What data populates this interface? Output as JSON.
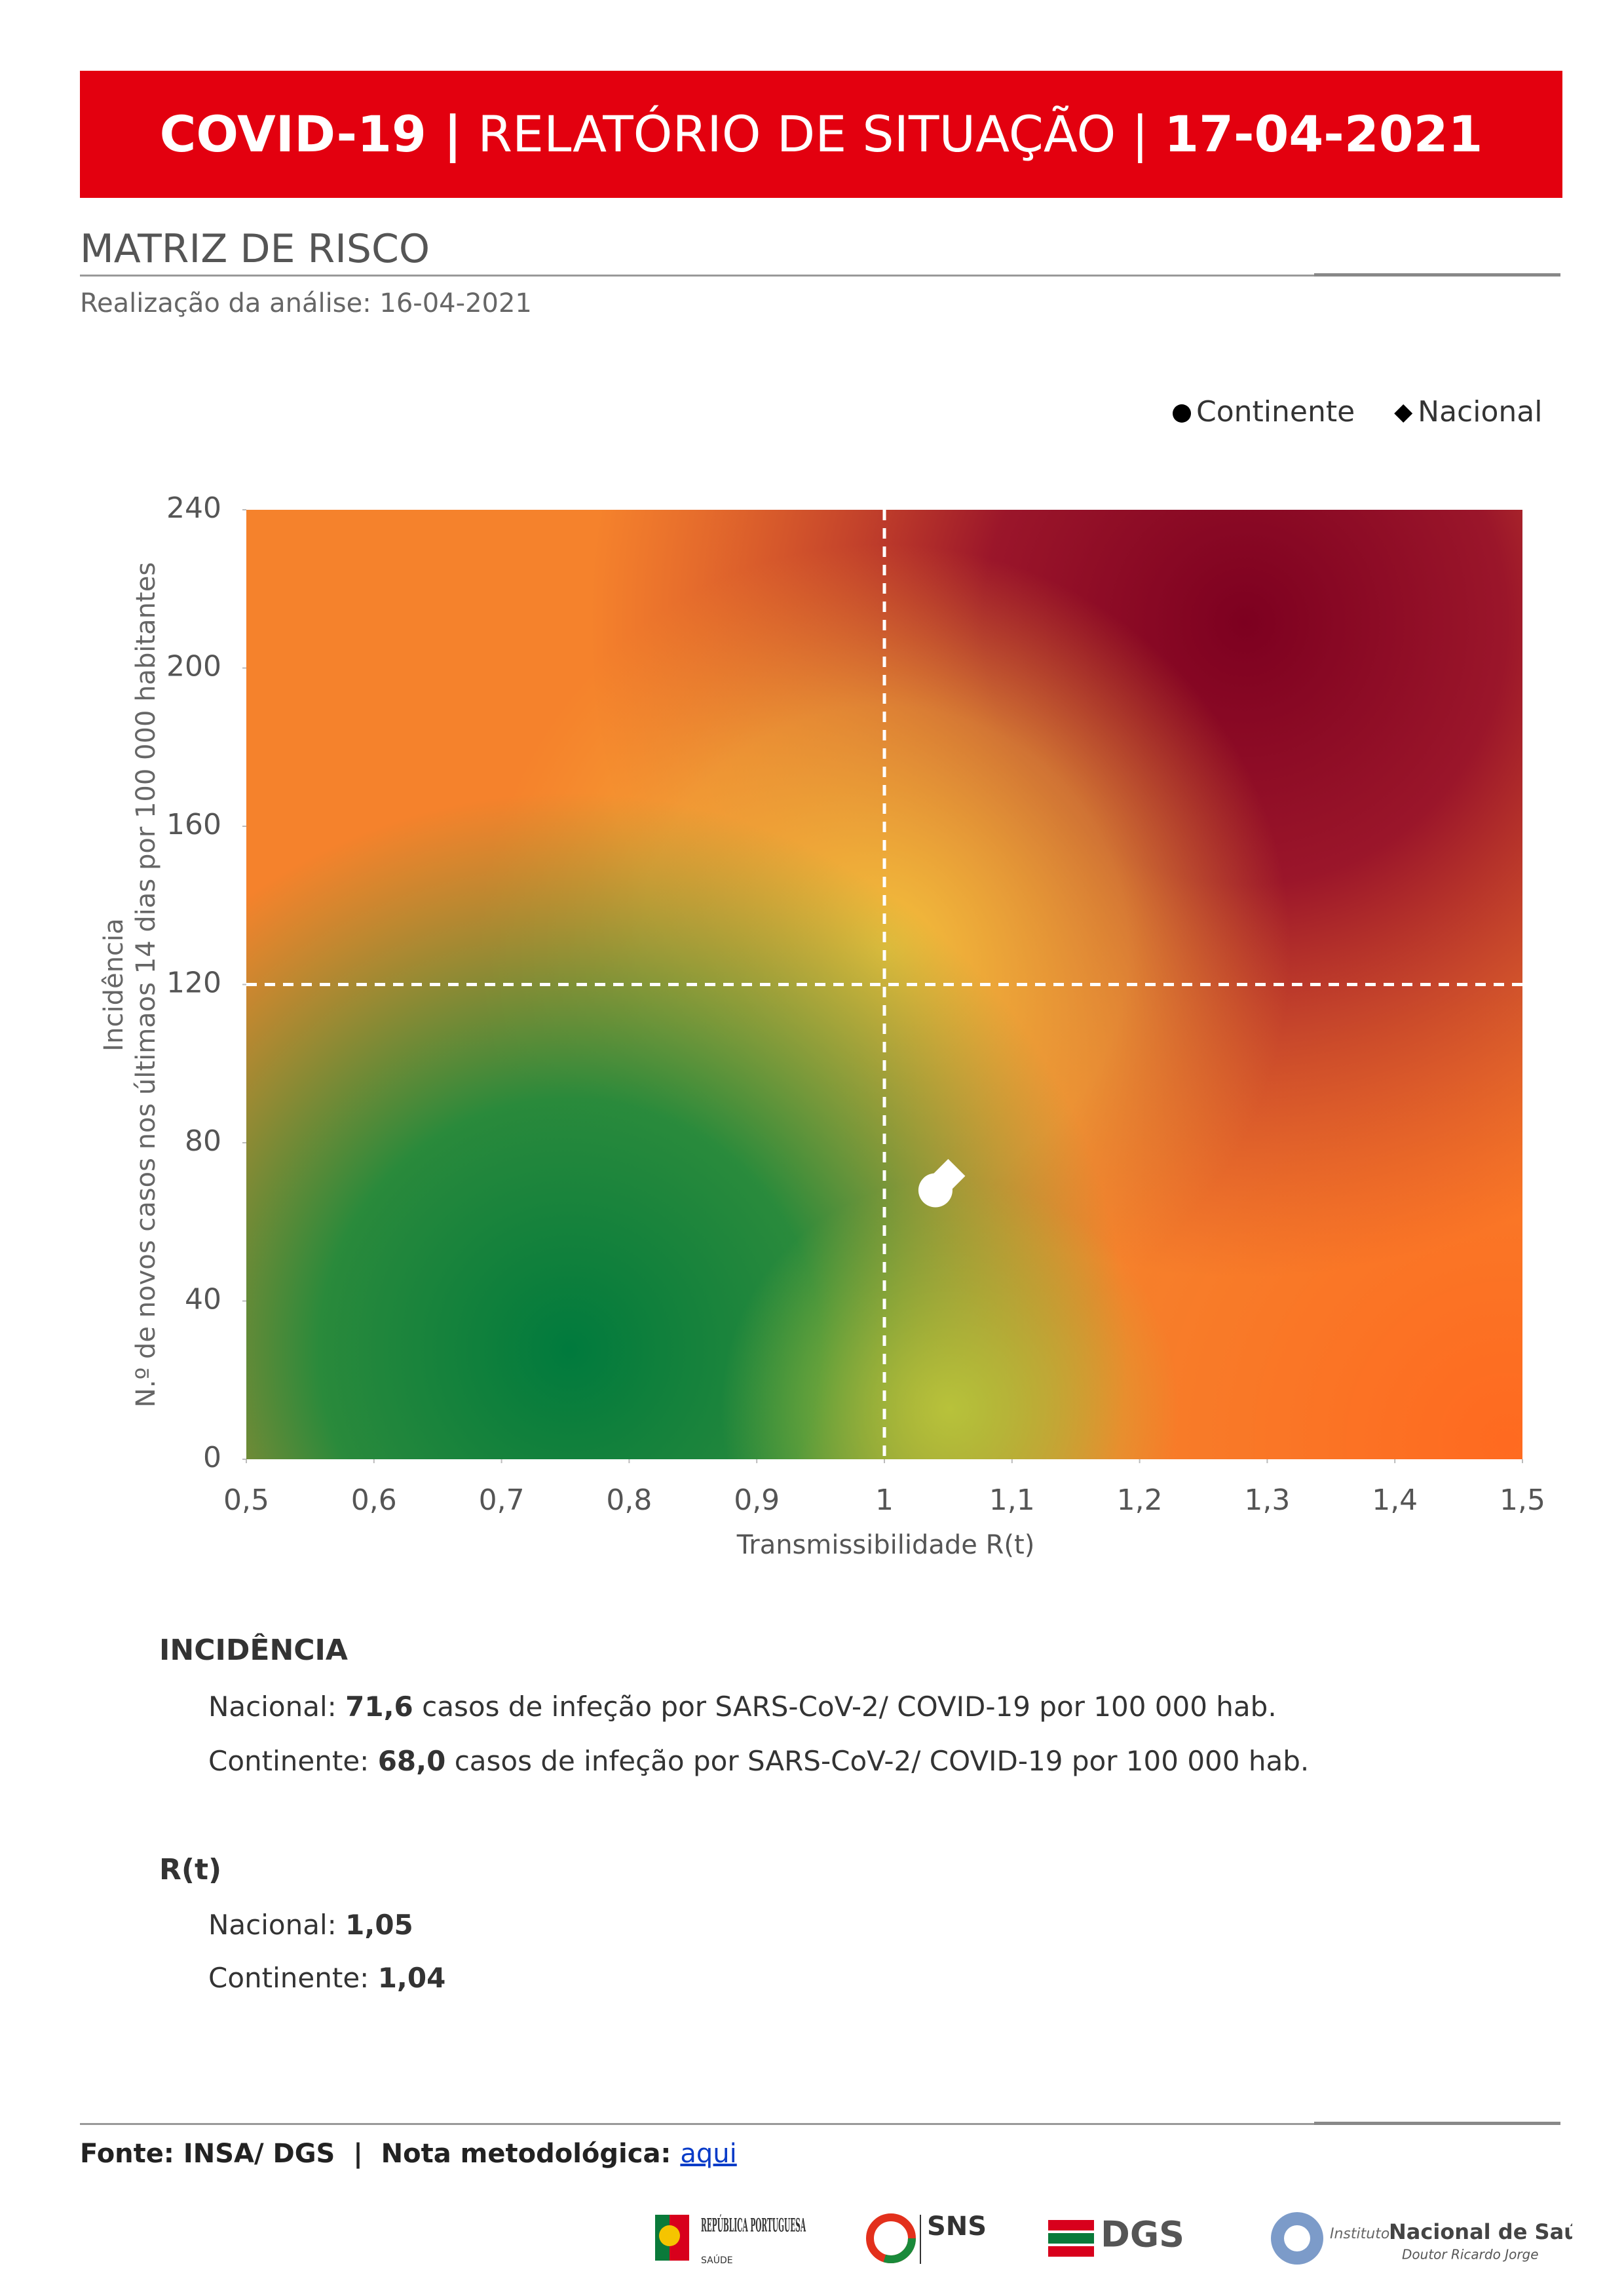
{
  "header": {
    "title_parts": [
      "COVID-19 |",
      "RELATÓRIO DE SITUAÇÃO |",
      "17-04-2021"
    ]
  },
  "section": {
    "title": "MATRIZ DE RISCO",
    "subtitle": "Realização da análise: 16-04-2021"
  },
  "chart_data": {
    "type": "scatter",
    "x_label": "Transmissibilidade R(t)",
    "y_label": [
      "Incidência",
      "N.º de novos casos nos últimaos 14 dias por 100 000 habitantes"
    ],
    "series": [
      {
        "name": "Continente",
        "marker": "circle",
        "color": "#ffffff",
        "x": [
          1.04
        ],
        "values": [
          68.0
        ]
      },
      {
        "name": "Nacional",
        "marker": "diamond",
        "color": "#ffffff",
        "x": [
          1.05
        ],
        "values": [
          71.6
        ]
      }
    ],
    "legend_position": "top-right",
    "xlim": [
      0.5,
      1.5
    ],
    "xticks": [
      {
        "value": 0.5,
        "label": "0,5"
      },
      {
        "value": 0.6,
        "label": "0,6"
      },
      {
        "value": 0.7,
        "label": "0,7"
      },
      {
        "value": 0.8,
        "label": "0,8"
      },
      {
        "value": 0.9,
        "label": "0,9"
      },
      1,
      {
        "value": 1.1,
        "label": "1,1"
      },
      {
        "value": 1.2,
        "label": "1,2"
      },
      {
        "value": 1.3,
        "label": "1,3"
      },
      {
        "value": 1.4,
        "label": "1,4"
      },
      {
        "value": 1.5,
        "label": "1,5"
      }
    ],
    "ylim": [
      0,
      240
    ],
    "yticks": [
      0,
      40,
      80,
      120,
      160,
      200,
      240
    ],
    "reference_lines": {
      "x": 1,
      "y": 120
    }
  },
  "incidence": {
    "heading": "INCIDÊNCIA",
    "items": [
      {
        "label": "Nacional:",
        "value": "71,6",
        "text": "casos de infeção por SARS-CoV-2/ COVID-19 por 100 000 hab."
      },
      {
        "label": "Continente:",
        "value": "68,0",
        "text": "casos de infeção por SARS-CoV-2/ COVID-19 por 100 000 hab."
      }
    ]
  },
  "rt": {
    "heading": "R(t)",
    "items": [
      {
        "label": "Nacional:",
        "value": "1,05"
      },
      {
        "label": "Continente:",
        "value": "1,04"
      }
    ]
  },
  "footer": {
    "source": "Fonte: INSA/ DGS",
    "separator": "|",
    "note": "Nota metodológica:",
    "link": "aqui"
  },
  "logos": {
    "republica": "REPÚBLICA PORTUGUESA",
    "saude": "SAÚDE",
    "sns": "SNS",
    "dgs": "DGS",
    "insa_prefix": "Instituto",
    "insa_name": "Nacional de Saúde",
    "insa_sub": "Doutor Ricardo Jorge"
  }
}
